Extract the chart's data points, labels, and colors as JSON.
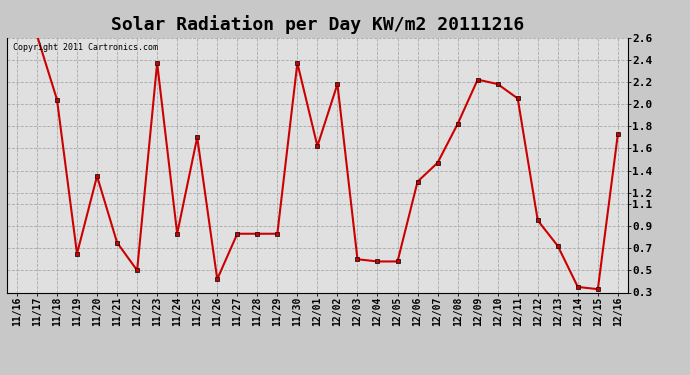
{
  "title": "Solar Radiation per Day KW/m2 20111216",
  "copyright": "Copyright 2011 Cartronics.com",
  "dates": [
    "11/16",
    "11/17",
    "11/18",
    "11/19",
    "11/20",
    "11/21",
    "11/22",
    "11/23",
    "11/24",
    "11/25",
    "11/26",
    "11/27",
    "11/28",
    "11/29",
    "11/30",
    "12/01",
    "12/02",
    "12/03",
    "12/04",
    "12/05",
    "12/06",
    "12/07",
    "12/08",
    "12/09",
    "12/10",
    "12/11",
    "12/12",
    "12/13",
    "12/14",
    "12/15",
    "12/16"
  ],
  "values": [
    2.62,
    2.62,
    2.04,
    0.65,
    1.35,
    0.75,
    0.5,
    2.37,
    0.83,
    1.7,
    0.42,
    0.83,
    0.83,
    0.83,
    2.37,
    1.62,
    2.18,
    0.6,
    0.58,
    0.58,
    1.3,
    1.47,
    1.82,
    2.22,
    2.18,
    2.05,
    0.95,
    0.72,
    0.35,
    0.33,
    1.73
  ],
  "ylim": [
    0.3,
    2.6
  ],
  "yticks": [
    0.3,
    0.5,
    0.7,
    0.9,
    1.1,
    1.2,
    1.4,
    1.6,
    1.8,
    2.0,
    2.2,
    2.4,
    2.6
  ],
  "ytick_labels": [
    "0.3",
    "0.5",
    "0.7",
    "0.9",
    "1.1",
    "1.2",
    "1.4",
    "1.6",
    "1.8",
    "2.0",
    "2.2",
    "2.4",
    "2.6"
  ],
  "line_color": "#cc0000",
  "marker_color": "#cc0000",
  "plot_bg_color": "#e0e0e0",
  "fig_bg_color": "#c8c8c8",
  "grid_color": "#aaaaaa",
  "title_fontsize": 13,
  "tick_fontsize": 7,
  "copyright_fontsize": 6
}
